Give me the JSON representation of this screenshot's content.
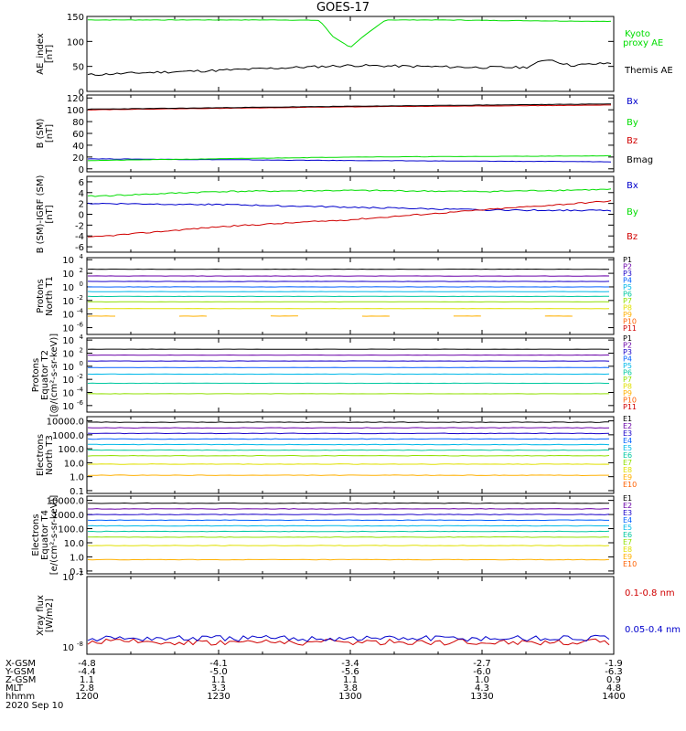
{
  "title": "GOES-17",
  "colors": {
    "black": "#000000",
    "green": "#00dd00",
    "red": "#d00000",
    "blue": "#0000cc",
    "P": [
      "#000000",
      "#6a00a8",
      "#1a00c8",
      "#0060ff",
      "#00b8e8",
      "#00c8a0",
      "#90e000",
      "#e0e000",
      "#ffb000",
      "#ff6000",
      "#d00000"
    ],
    "E": [
      "#000000",
      "#6a00a8",
      "#1a00c8",
      "#0060ff",
      "#00b8e8",
      "#00c8a0",
      "#90e000",
      "#e0e000",
      "#ffb000",
      "#ff6000",
      "#d00000"
    ]
  },
  "chart_data": [
    {
      "type": "line",
      "ylabel": "AE_index\n[nT]",
      "ylim": [
        0,
        150
      ],
      "yticks": [
        "0",
        "50",
        "100",
        "150"
      ],
      "series": [
        {
          "name": "Kyoto proxy AE",
          "x": [
            "12:00",
            "12:45",
            "12:53",
            "12:56",
            "13:00",
            "13:03",
            "13:08",
            "13:20",
            "14:00"
          ],
          "values": [
            143,
            143,
            142,
            110,
            88,
            110,
            143,
            143,
            140
          ]
        },
        {
          "name": "Themis AE",
          "x": [
            "12:00",
            "12:15",
            "12:30",
            "12:45",
            "13:00",
            "13:15",
            "13:30",
            "13:40",
            "13:45",
            "13:50",
            "14:00"
          ],
          "values": [
            33,
            38,
            42,
            47,
            52,
            50,
            48,
            48,
            65,
            52,
            57
          ]
        }
      ],
      "legend": [
        "Kyoto\nproxy AE",
        "Themis AE"
      ]
    },
    {
      "type": "line",
      "ylabel": "B (SM)\n[nT]",
      "ylim": [
        -5,
        125
      ],
      "yticks": [
        "0",
        "20",
        "40",
        "60",
        "80",
        "100",
        "120"
      ],
      "series": [
        {
          "name": "Bx",
          "x": [
            "12:00",
            "13:00",
            "14:00"
          ],
          "values": [
            17,
            14,
            12
          ]
        },
        {
          "name": "By",
          "x": [
            "12:00",
            "13:00",
            "14:00"
          ],
          "values": [
            14,
            20,
            22
          ]
        },
        {
          "name": "Bz",
          "x": [
            "12:00",
            "13:00",
            "14:00"
          ],
          "values": [
            100,
            105,
            108
          ]
        },
        {
          "name": "Bmag",
          "x": [
            "12:00",
            "13:00",
            "14:00"
          ],
          "values": [
            101,
            106,
            110
          ]
        }
      ],
      "legend": [
        "Bx",
        "By",
        "Bz",
        "Bmag"
      ]
    },
    {
      "type": "line",
      "ylabel": "B (SM)-IGRF (SM)\n[nT]",
      "ylim": [
        -7,
        7
      ],
      "yticks": [
        "-6",
        "-4",
        "-2",
        "0",
        "2",
        "4",
        "6"
      ],
      "series": [
        {
          "name": "Bx",
          "x": [
            "12:00",
            "12:30",
            "13:00",
            "13:30",
            "14:00"
          ],
          "values": [
            2.0,
            1.8,
            1.3,
            0.8,
            0.7
          ]
        },
        {
          "name": "By",
          "x": [
            "12:00",
            "12:30",
            "13:00",
            "13:30",
            "14:00"
          ],
          "values": [
            3.3,
            4.2,
            4.4,
            4.2,
            4.6
          ]
        },
        {
          "name": "Bz",
          "x": [
            "12:00",
            "12:30",
            "13:00",
            "13:30",
            "14:00"
          ],
          "values": [
            -4.3,
            -2.3,
            -1.0,
            0.8,
            2.5
          ]
        }
      ],
      "legend": [
        "Bx",
        "By",
        "Bz"
      ]
    },
    {
      "type": "line",
      "ylabel": "Protons\nNorth T1",
      "scale": "log",
      "yticks": [
        "10^4",
        "10^2",
        "10^0",
        "10^-2",
        "10^-4",
        "10^-6"
      ],
      "channels": [
        "P1",
        "P2",
        "P3",
        "P4",
        "P5",
        "P6",
        "P7",
        "P8",
        "P9",
        "P10",
        "P11"
      ],
      "levels_log10": [
        2.6,
        1.6,
        0.8,
        0.0,
        -0.7,
        -1.4,
        -2.2,
        -3.2,
        -4.3
      ]
    },
    {
      "type": "line",
      "ylabel": "Protons\nEquator T2\n[@/(cm²-s-sr-keV)]",
      "scale": "log",
      "yticks": [
        "10^4",
        "10^2",
        "10^0",
        "10^-2",
        "10^-4",
        "10^-6"
      ],
      "channels": [
        "P1",
        "P2",
        "P3",
        "P4",
        "P5",
        "P6",
        "P7",
        "P8",
        "P9",
        "P10",
        "P11"
      ],
      "levels_log10": [
        2.6,
        1.7,
        0.8,
        -0.2,
        -1.2,
        -2.6,
        -4.2
      ]
    },
    {
      "type": "line",
      "ylabel": "Electrons\nNorth T3",
      "scale": "log",
      "yticks": [
        "10000.0",
        "1000.0",
        "100.0",
        "10.0",
        "1.0",
        "0.1"
      ],
      "channels": [
        "E1",
        "E2",
        "E3",
        "E4",
        "E5",
        "E6",
        "E7",
        "E8",
        "E9",
        "E10"
      ],
      "levels_log10": [
        3.9,
        3.5,
        3.1,
        2.7,
        2.3,
        1.9,
        1.5,
        0.9,
        0.1
      ]
    },
    {
      "type": "line",
      "ylabel": "Electrons\nEquator T4\n[e/(cm²-s-sr-keV)]",
      "scale": "log",
      "yticks": [
        "10000.0",
        "1000.0",
        "100.0",
        "10.0",
        "1.0",
        "0.1"
      ],
      "channels": [
        "E1",
        "E2",
        "E3",
        "E4",
        "E5",
        "E6",
        "E7",
        "E8",
        "E9",
        "E10"
      ],
      "levels_log10": [
        3.8,
        3.4,
        3.0,
        2.6,
        2.2,
        1.8,
        1.4,
        0.8,
        -0.2
      ]
    },
    {
      "type": "line",
      "ylabel": "Xray flux\n[W/m2]",
      "scale": "log",
      "yticks": [
        "10^-7",
        "10^-8"
      ],
      "series": [
        {
          "name": "0.1-0.8 nm",
          "level_log10": -7.93
        },
        {
          "name": "0.05-0.4 nm",
          "level_log10": -7.88
        }
      ],
      "legend": [
        "0.1-0.8 nm",
        "0.05-0.4 nm"
      ]
    }
  ],
  "xaxis": {
    "rows": [
      {
        "label": "X-GSM",
        "values": [
          "-4.8",
          "-4.1",
          "-3.4",
          "-2.7",
          "-1.9"
        ]
      },
      {
        "label": "Y-GSM",
        "values": [
          "-4.4",
          "-5.0",
          "-5.6",
          "-6.0",
          "-6.3"
        ]
      },
      {
        "label": "Z-GSM",
        "values": [
          "1.1",
          "1.1",
          "1.1",
          "1.0",
          "0.9"
        ]
      },
      {
        "label": "MLT",
        "values": [
          "2.8",
          "3.3",
          "3.8",
          "4.3",
          "4.8"
        ]
      },
      {
        "label": "hhmm",
        "values": [
          "1200",
          "1230",
          "1300",
          "1330",
          "1400"
        ]
      }
    ],
    "date": "2020 Sep 10"
  }
}
